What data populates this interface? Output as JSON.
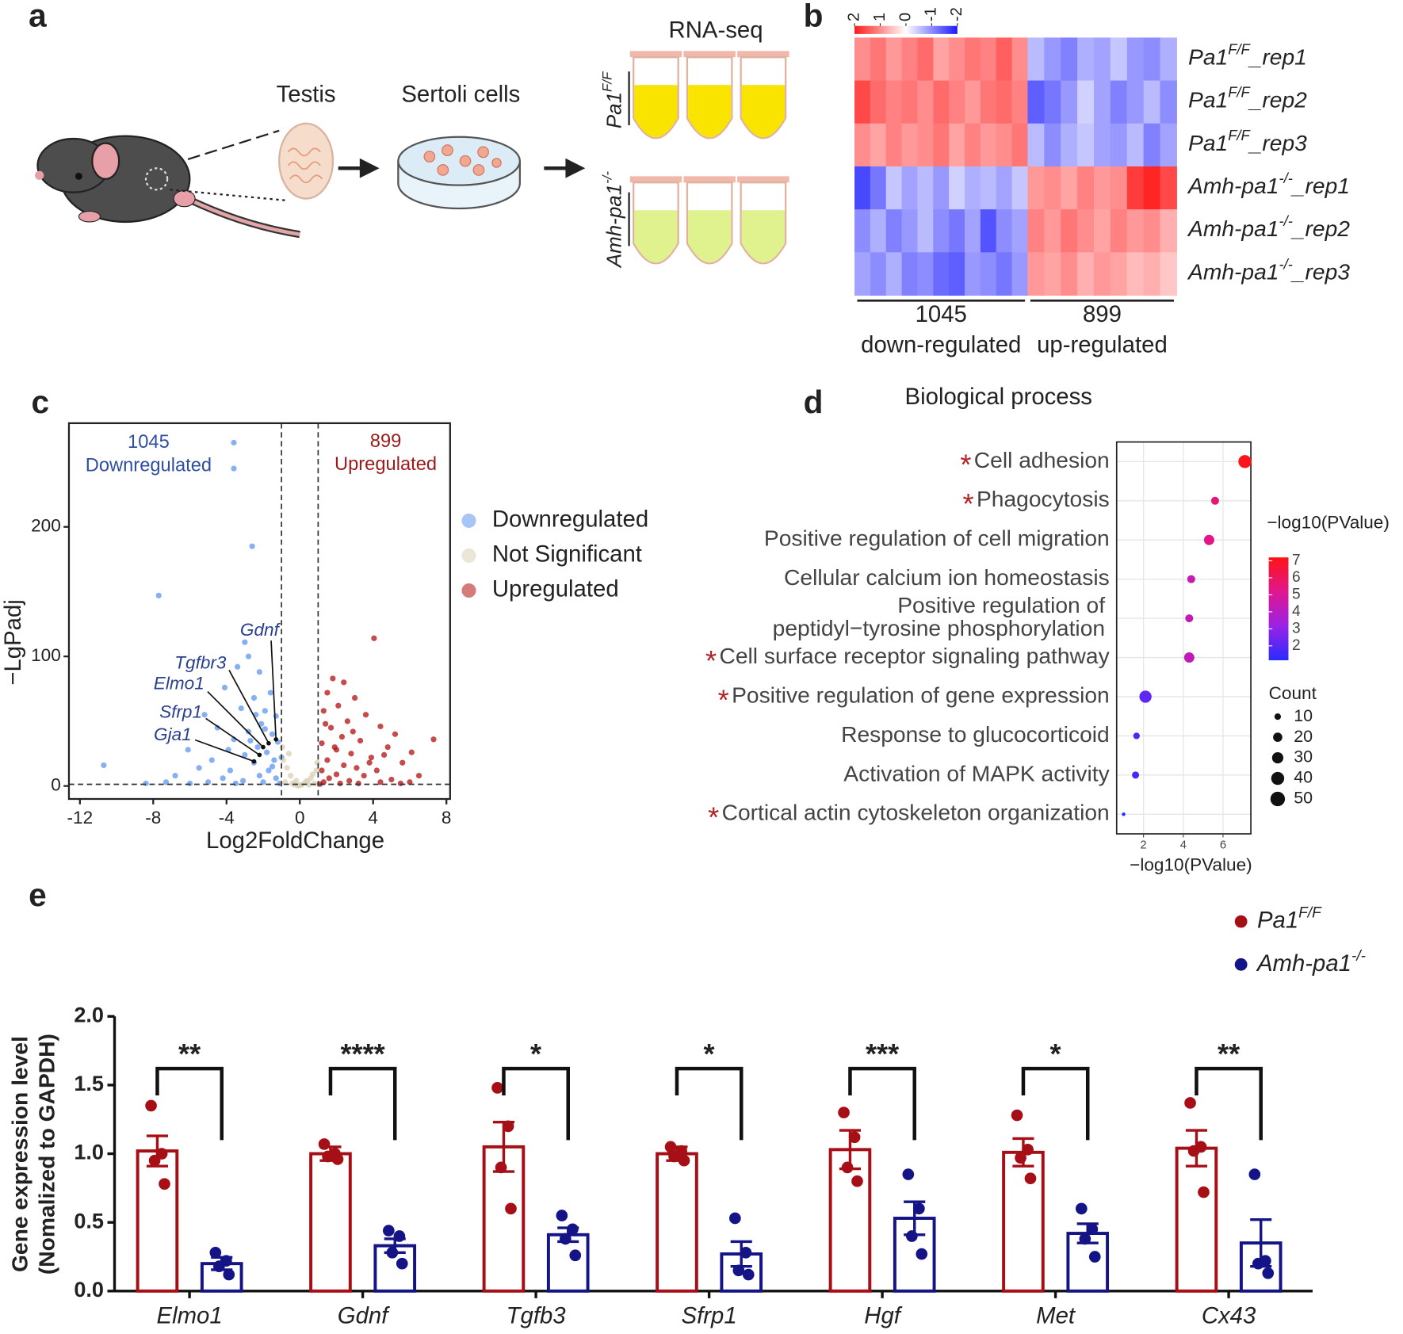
{
  "panel_labels": [
    "a",
    "b",
    "c",
    "d",
    "e"
  ],
  "schematic": {
    "tissue": "Testis",
    "cells": "Sertoli cells",
    "assay": "RNA-seq",
    "groups": [
      [
        "Pa1",
        "F/F"
      ],
      [
        "Amh-pa1",
        "-/-"
      ]
    ]
  },
  "chart_data": [
    {
      "type": "heatmap",
      "rows": [
        [
          "Pa1",
          "F/F",
          "_rep1"
        ],
        [
          "Pa1",
          "F/F",
          "_rep2"
        ],
        [
          "Pa1",
          "F/F",
          "_rep3"
        ],
        [
          "Amh-pa1",
          "-/-",
          "_rep1"
        ],
        [
          "Amh-pa1",
          "-/-",
          "_rep2"
        ],
        [
          "Amh-pa1",
          "-/-",
          "_rep3"
        ]
      ],
      "groups": [
        {
          "count": 1045,
          "label": "down-regulated",
          "values": [
            [
              1.0,
              1.2,
              0.9,
              1.1,
              1.3,
              0.8,
              1.0,
              1.2,
              1.1,
              1.4,
              1.0
            ],
            [
              1.6,
              1.3,
              1.1,
              1.2,
              1.0,
              1.3,
              1.1,
              0.9,
              1.2,
              1.3,
              1.1
            ],
            [
              1.0,
              0.8,
              1.1,
              0.9,
              1.0,
              1.2,
              0.8,
              1.1,
              0.9,
              1.0,
              1.2
            ],
            [
              -1.6,
              -1.2,
              -0.5,
              -0.8,
              -0.6,
              -0.9,
              -0.4,
              -0.7,
              -0.6,
              -0.8,
              -0.5
            ],
            [
              -1.0,
              -0.7,
              -1.1,
              -0.9,
              -0.6,
              -1.0,
              -1.2,
              -0.8,
              -1.5,
              -1.0,
              -0.8
            ],
            [
              -0.8,
              -1.0,
              -0.7,
              -1.1,
              -1.0,
              -1.3,
              -1.4,
              -0.9,
              -1.0,
              -1.2,
              -0.9
            ]
          ]
        },
        {
          "count": 899,
          "label": "up-regulated",
          "values": [
            [
              -0.6,
              -0.9,
              -1.1,
              -0.7,
              -0.8,
              -0.5,
              -0.9,
              -1.0,
              -0.7
            ],
            [
              -1.4,
              -1.2,
              -0.9,
              -0.4,
              -0.8,
              -1.1,
              -0.9,
              -0.6,
              -1.0
            ],
            [
              -0.6,
              -1.0,
              -0.7,
              -0.5,
              -0.8,
              -0.9,
              -0.6,
              -1.1,
              -0.8
            ],
            [
              0.9,
              1.0,
              0.8,
              1.1,
              0.9,
              1.0,
              1.7,
              1.9,
              1.6
            ],
            [
              1.1,
              0.9,
              1.2,
              1.0,
              0.8,
              1.1,
              0.9,
              1.0,
              0.7
            ],
            [
              0.9,
              0.8,
              1.0,
              0.7,
              0.9,
              0.8,
              0.6,
              0.7,
              0.5
            ]
          ]
        }
      ],
      "zlim": [
        -2,
        2
      ],
      "zticks": [
        2,
        1,
        0,
        -1,
        -2
      ],
      "colors": [
        "#ff1a1a",
        "#ffffff",
        "#1a1aff"
      ]
    },
    {
      "type": "scatter",
      "xlabel": "Log2FoldChange",
      "ylabel": "−LgPadj",
      "xlim": [
        -12.6,
        8.2
      ],
      "ylim": [
        -10,
        280
      ],
      "xticks": [
        -12,
        -8,
        -4,
        0,
        4,
        8
      ],
      "yticks": [
        0,
        100,
        200
      ],
      "thresholds": {
        "x": [
          -1,
          1
        ],
        "y": 1.3
      },
      "group_counts": [
        {
          "count": 1045,
          "label": "Downregulated",
          "color": "#2f4f9f"
        },
        {
          "count": 899,
          "label": "Upregulated",
          "color": "#9b1b1b"
        }
      ],
      "series": [
        {
          "name": "Downregulated",
          "color": "#5f95f0",
          "x": [
            -3.6,
            -3.6,
            -2.6,
            -7.7,
            -10.7,
            -3.0,
            -2.8,
            -3.4,
            -2.2,
            -4.1,
            -1.6,
            -2.5,
            -3.2,
            -1.9,
            -5.2,
            -1.3,
            -2.1,
            -4.5,
            -2.8,
            -1.5,
            -3.6,
            -1.2,
            -2.3,
            -6.1,
            -1.8,
            -3.0,
            -4.8,
            -1.4,
            -2.5,
            -5.5,
            -3.8,
            -1.7,
            -6.8,
            -2.2,
            -4.2,
            -1.3,
            -3.1,
            -5.0,
            -7.3,
            -2.0,
            -8.4,
            -1.1,
            -6.0,
            -3.5,
            -1.5,
            -2.7,
            -1.9,
            -3.9,
            -1.0,
            -2.4
          ],
          "values": [
            265,
            245,
            185,
            147,
            16,
            111,
            100,
            92,
            88,
            76,
            72,
            68,
            60,
            58,
            55,
            54,
            48,
            45,
            42,
            40,
            36,
            34,
            30,
            28,
            26,
            24,
            20,
            20,
            18,
            14,
            12,
            12,
            8,
            8,
            6,
            6,
            4,
            3,
            3,
            3,
            2,
            2,
            2,
            2,
            15,
            35,
            44,
            28,
            22,
            55
          ]
        },
        {
          "name": "Not Significant",
          "color": "#d9cfb4",
          "x": [
            -0.9,
            -0.5,
            -0.2,
            0.3,
            0.6,
            0.9,
            -0.7,
            0.1,
            -0.3,
            0.5,
            -0.8,
            0.8,
            0.0,
            -0.6,
            0.7,
            -0.4,
            0.4,
            -0.95,
            0.95,
            -0.1
          ],
          "values": [
            20,
            8,
            4,
            3,
            6,
            12,
            14,
            1,
            1,
            1,
            3,
            2,
            0.5,
            25,
            9,
            2,
            4,
            30,
            18,
            0.2
          ]
        },
        {
          "name": "Upregulated",
          "color": "#b30f0f",
          "x": [
            4.05,
            7.3,
            1.8,
            2.4,
            1.5,
            3.0,
            2.1,
            1.3,
            3.6,
            2.6,
            4.4,
            1.7,
            5.2,
            2.3,
            3.3,
            1.2,
            4.8,
            2.0,
            6.1,
            2.8,
            3.9,
            1.5,
            5.6,
            2.4,
            3.1,
            1.2,
            4.2,
            6.5,
            2.0,
            3.5,
            1.6,
            5.0,
            2.7,
            4.4,
            6.0,
            1.3,
            3.2,
            5.5,
            2.2,
            1.1,
            3.8,
            1.9,
            2.9,
            1.4,
            4.6
          ],
          "values": [
            114,
            36,
            83,
            80,
            72,
            68,
            62,
            58,
            55,
            50,
            46,
            45,
            40,
            38,
            35,
            33,
            30,
            28,
            26,
            25,
            22,
            20,
            18,
            16,
            14,
            12,
            12,
            8,
            9,
            8,
            6,
            5,
            4,
            3,
            3,
            3,
            2,
            2,
            2,
            1.5,
            18,
            30,
            42,
            48,
            24
          ]
        }
      ],
      "genes": [
        {
          "name": "Gdnf",
          "x": -1.3,
          "y": 36
        },
        {
          "name": "Tgfbr3",
          "x": -1.7,
          "y": 33
        },
        {
          "name": "Elmo1",
          "x": -2.0,
          "y": 30
        },
        {
          "name": "Sfrp1",
          "x": -2.2,
          "y": 24
        },
        {
          "name": "Gja1",
          "x": -2.5,
          "y": 19
        }
      ]
    },
    {
      "type": "dot",
      "title": "Biological process",
      "categories": [
        [
          "Cell adhesion"
        ],
        [
          "Phagocytosis"
        ],
        [
          "Positive regulation of cell migration"
        ],
        [
          "Cellular calcium ion homeostasis"
        ],
        [
          "Positive regulation of",
          "peptidyl−tyrosine phosphorylation"
        ],
        [
          "Cell surface receptor signaling pathway"
        ],
        [
          "Positive regulation of gene expression"
        ],
        [
          "Response to glucocorticoid"
        ],
        [
          "Activation of MAPK activity"
        ],
        [
          "Cortical actin cytoskeleton organization"
        ]
      ],
      "starred": [
        true,
        true,
        false,
        false,
        false,
        true,
        true,
        false,
        false,
        true
      ],
      "star": "*",
      "star_color": "#b22222",
      "values": [
        7.1,
        5.6,
        5.3,
        4.4,
        4.3,
        4.3,
        2.1,
        1.65,
        1.6,
        1.0
      ],
      "counts": [
        40,
        15,
        25,
        15,
        15,
        25,
        35,
        10,
        12,
        3
      ],
      "xlabel": "−log10(PValue)",
      "xlim": [
        0.65,
        7.4
      ],
      "xticks": [
        2,
        4,
        6
      ],
      "grid": true,
      "color_label": "−log10(PValue)",
      "clim": [
        1.15,
        7.2
      ],
      "cticks": [
        2,
        3,
        4,
        5,
        6,
        7
      ],
      "colors": [
        "#2b2bff",
        "#9a22e6",
        "#e0168e",
        "#ff1414"
      ],
      "size_label": "Count",
      "size_ticks": [
        10,
        20,
        30,
        40,
        50
      ]
    },
    {
      "type": "bar",
      "ylabel": [
        "Gene expression level",
        "(Nomalized to GAPDH)"
      ],
      "categories": [
        "Elmo1",
        "Gdnf",
        "Tgfb3",
        "Sfrp1",
        "Hgf",
        "Met",
        "Cx43"
      ],
      "ylim": [
        0,
        2
      ],
      "yticks": [
        {
          "value": 0,
          "label": "0.0"
        },
        0.5,
        {
          "value": 1,
          "label": "1.0"
        },
        1.5,
        {
          "value": 2,
          "label": "2.0"
        }
      ],
      "series": [
        {
          "name": [
            "Pa1",
            "F/F"
          ],
          "color": "#a50f15",
          "values": [
            1.02,
            1.0,
            1.05,
            1.0,
            1.03,
            1.01,
            1.04
          ],
          "errors": [
            0.11,
            0.05,
            0.18,
            0.05,
            0.14,
            0.1,
            0.13
          ],
          "points": [
            [
              1.35,
              1.0,
              0.95,
              0.78
            ],
            [
              1.07,
              1.0,
              0.98,
              0.96
            ],
            [
              1.48,
              1.2,
              0.9,
              0.6
            ],
            [
              1.05,
              1.02,
              0.98,
              0.95
            ],
            [
              1.3,
              1.12,
              0.9,
              0.8
            ],
            [
              1.28,
              1.03,
              0.97,
              0.82
            ],
            [
              1.37,
              1.05,
              1.02,
              0.72
            ]
          ]
        },
        {
          "name": [
            "Amh-pa1",
            "-/-"
          ],
          "color": "#141487",
          "values": [
            0.2,
            0.33,
            0.41,
            0.27,
            0.53,
            0.42,
            0.35
          ],
          "errors": [
            0.045,
            0.05,
            0.05,
            0.09,
            0.12,
            0.07,
            0.17
          ],
          "points": [
            [
              0.28,
              0.22,
              0.18,
              0.12
            ],
            [
              0.44,
              0.4,
              0.28,
              0.2
            ],
            [
              0.55,
              0.45,
              0.38,
              0.26
            ],
            [
              0.53,
              0.28,
              0.15,
              0.12
            ],
            [
              0.85,
              0.6,
              0.4,
              0.27
            ],
            [
              0.6,
              0.45,
              0.38,
              0.25
            ],
            [
              0.85,
              0.22,
              0.2,
              0.13
            ]
          ]
        }
      ],
      "significance": [
        "**",
        "****",
        "*",
        "*",
        "***",
        "*",
        "**"
      ]
    }
  ]
}
